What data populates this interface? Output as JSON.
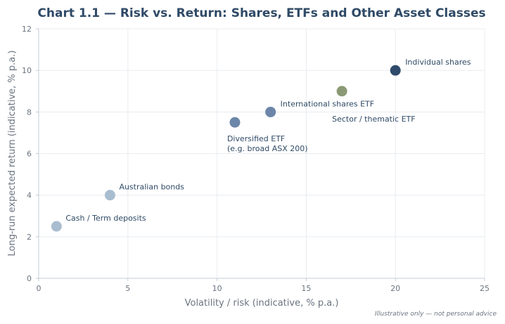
{
  "chart_data": {
    "type": "scatter",
    "title": "Chart 1.1 — Risk vs. Return: Shares, ETFs and Other Asset Classes",
    "xlabel": "Volatility / risk (indicative, % p.a.)",
    "ylabel": "Long-run expected return (indicative, % p.a.)",
    "xlim": [
      0,
      25
    ],
    "ylim": [
      0,
      12
    ],
    "xticks": [
      0,
      5,
      10,
      15,
      20,
      25
    ],
    "yticks": [
      0,
      2,
      4,
      6,
      8,
      10,
      12
    ],
    "grid": true,
    "points": [
      {
        "label": "Cash / Term deposits",
        "x": 1,
        "y": 2.5,
        "color": "#a9bdd0"
      },
      {
        "label": "Australian bonds",
        "x": 4,
        "y": 4,
        "color": "#a9bdd0"
      },
      {
        "label": "Diversified ETF\n(e.g. broad ASX 200)",
        "x": 11,
        "y": 7.5,
        "color": "#6b86a8"
      },
      {
        "label": "International shares ETF",
        "x": 13,
        "y": 8,
        "color": "#6b86a8"
      },
      {
        "label": "Sector / thematic ETF",
        "x": 17,
        "y": 9,
        "color": "#8a9a74"
      },
      {
        "label": "Individual shares",
        "x": 20,
        "y": 10,
        "color": "#2f4a6b"
      }
    ],
    "footnote": "Illustrative only — not personal advice"
  }
}
